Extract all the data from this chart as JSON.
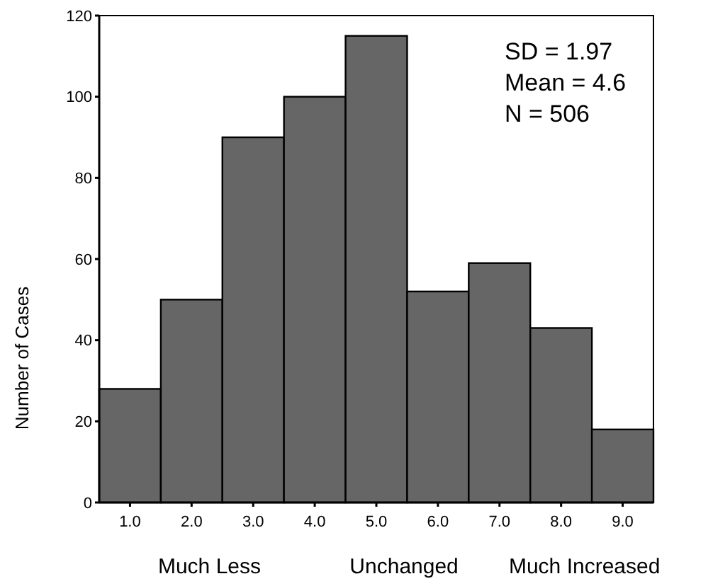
{
  "chart_data": {
    "type": "histogram",
    "ylabel": "Number of Cases",
    "bins": [
      0.5,
      1.5,
      2.5,
      3.5,
      4.5,
      5.5,
      6.5,
      7.5,
      8.5,
      9.5
    ],
    "values": [
      28,
      50,
      90,
      100,
      115,
      52,
      59,
      43,
      18
    ],
    "color": "#666666",
    "xlim": [
      0.5,
      9.5
    ],
    "xticks": [
      {
        "value": 1,
        "label": "1.0"
      },
      {
        "value": 2,
        "label": "2.0"
      },
      {
        "value": 3,
        "label": "3.0"
      },
      {
        "value": 4,
        "label": "4.0"
      },
      {
        "value": 5,
        "label": "5.0"
      },
      {
        "value": 6,
        "label": "6.0"
      },
      {
        "value": 7,
        "label": "7.0"
      },
      {
        "value": 8,
        "label": "8.0"
      },
      {
        "value": 9,
        "label": "9.0"
      }
    ],
    "ylim": [
      0,
      120
    ],
    "yticks": [
      0,
      20,
      40,
      60,
      80,
      100,
      120
    ],
    "annotations": [
      "SD = 1.97",
      "Mean = 4.6",
      "N = 506",
      "Much Less",
      "Unchanged",
      "Much Increased"
    ]
  }
}
